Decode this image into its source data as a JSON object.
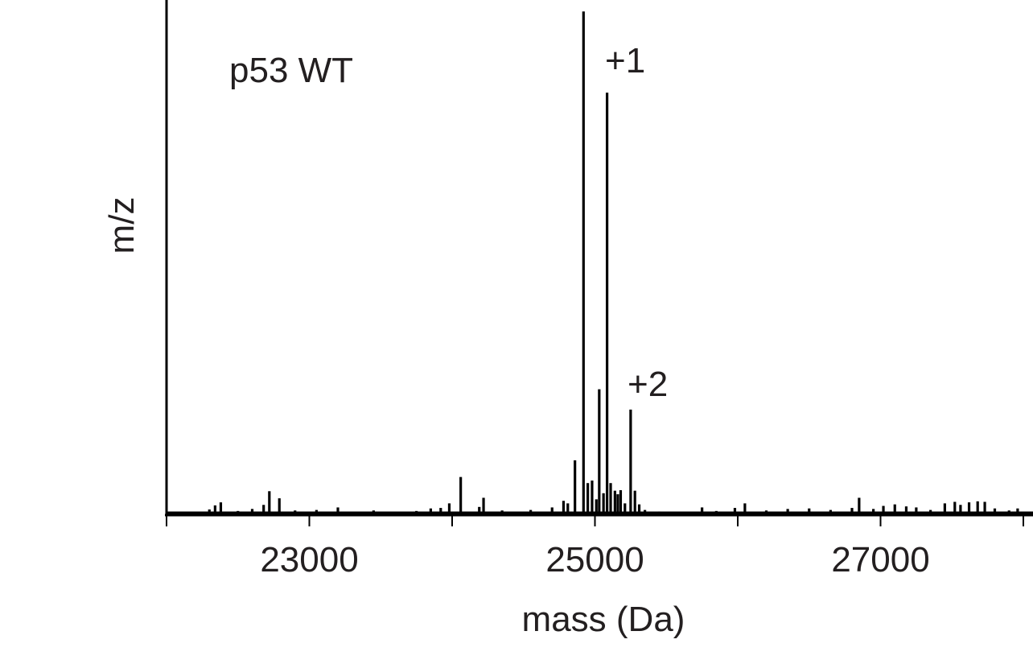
{
  "chart_data": {
    "type": "line",
    "title": "",
    "xlabel": "mass (Da)",
    "ylabel": "m/z",
    "xlim": [
      22000,
      28000
    ],
    "ylim": [
      0,
      100
    ],
    "grid": false,
    "xticks": [
      23000,
      25000,
      27000
    ],
    "xtick_minor": [
      22000,
      24000,
      26000,
      28000
    ],
    "annotations": [
      {
        "id": "label",
        "text": "p53 WT",
        "x": 22450,
        "y": 87
      },
      {
        "id": "plus1",
        "text": "+1",
        "x": 25040,
        "y": 89
      },
      {
        "id": "plus2",
        "text": "+2",
        "x": 25200,
        "y": 25
      }
    ],
    "series": [
      {
        "peaks": [
          [
            22100,
            0.3
          ],
          [
            22300,
            0.8
          ],
          [
            22340,
            1.6
          ],
          [
            22380,
            2.2
          ],
          [
            22500,
            0.5
          ],
          [
            22600,
            0.9
          ],
          [
            22680,
            1.7
          ],
          [
            22720,
            4.4
          ],
          [
            22790,
            3.0
          ],
          [
            22900,
            0.6
          ],
          [
            23050,
            0.7
          ],
          [
            23200,
            1.2
          ],
          [
            23450,
            0.6
          ],
          [
            23750,
            0.5
          ],
          [
            23850,
            1.0
          ],
          [
            23920,
            1.1
          ],
          [
            23980,
            2.0
          ],
          [
            24060,
            7.2
          ],
          [
            24190,
            1.3
          ],
          [
            24220,
            3.1
          ],
          [
            24350,
            0.6
          ],
          [
            24550,
            0.7
          ],
          [
            24700,
            1.2
          ],
          [
            24780,
            2.5
          ],
          [
            24810,
            2.0
          ],
          [
            24860,
            10.5
          ],
          [
            24920,
            99.0
          ],
          [
            24950,
            6.0
          ],
          [
            24980,
            6.5
          ],
          [
            25010,
            2.8
          ],
          [
            25030,
            24.5
          ],
          [
            25060,
            4.0
          ],
          [
            25085,
            83.0
          ],
          [
            25110,
            6.0
          ],
          [
            25140,
            4.5
          ],
          [
            25160,
            3.8
          ],
          [
            25180,
            4.6
          ],
          [
            25210,
            2.0
          ],
          [
            25250,
            20.5
          ],
          [
            25280,
            4.5
          ],
          [
            25310,
            1.8
          ],
          [
            25350,
            0.7
          ],
          [
            25450,
            0.4
          ],
          [
            25600,
            0.3
          ],
          [
            25750,
            1.2
          ],
          [
            25850,
            0.5
          ],
          [
            25980,
            1.1
          ],
          [
            26050,
            2.0
          ],
          [
            26200,
            0.6
          ],
          [
            26350,
            0.9
          ],
          [
            26500,
            1.0
          ],
          [
            26650,
            0.7
          ],
          [
            26800,
            1.1
          ],
          [
            26850,
            3.1
          ],
          [
            26950,
            0.9
          ],
          [
            27020,
            1.5
          ],
          [
            27100,
            1.8
          ],
          [
            27180,
            1.4
          ],
          [
            27250,
            1.2
          ],
          [
            27350,
            0.7
          ],
          [
            27450,
            2.0
          ],
          [
            27520,
            2.3
          ],
          [
            27560,
            1.7
          ],
          [
            27620,
            2.2
          ],
          [
            27680,
            2.4
          ],
          [
            27730,
            2.3
          ],
          [
            27800,
            1.0
          ],
          [
            27900,
            0.6
          ],
          [
            27960,
            1.0
          ]
        ]
      }
    ]
  }
}
